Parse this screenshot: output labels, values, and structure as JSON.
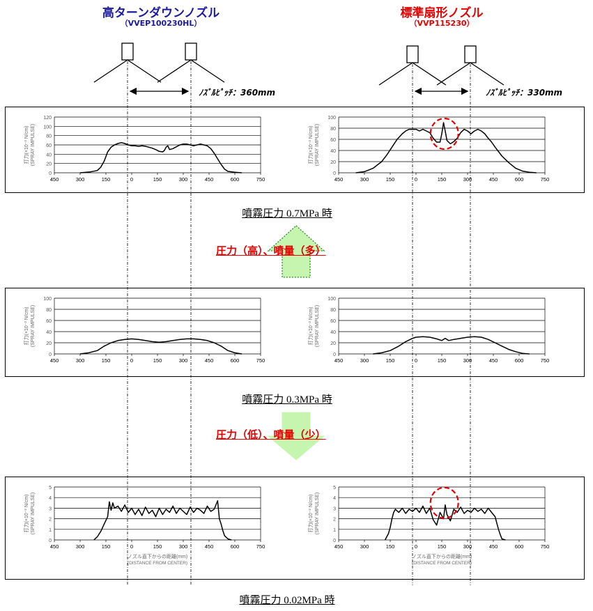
{
  "header": {
    "left_title": "高ターンダウンノズル",
    "left_model": "（VVEP100230HL）",
    "right_title": "標準扇形ノズル",
    "right_model": "（VVP115230）",
    "left_pitch": "ﾉｽﾞﾙﾋﾟｯﾁ：360mm",
    "right_pitch": "ﾉｽﾞﾙﾋﾟｯﾁ：330mm",
    "colors": {
      "left_title": "#1a1aa0",
      "right_title": "#e60000"
    }
  },
  "captions": {
    "p07": "噴霧圧力 0.7MPa 時",
    "p03": "噴霧圧力 0.3MPa 時",
    "p002": "噴霧圧力 0.02MPa 時"
  },
  "arrows": {
    "up_label": "圧力（高）、噴量（多）",
    "down_label": "圧力（低）、噴量（少）",
    "up_icon": "arrow-up-icon",
    "down_icon": "arrow-down-icon",
    "arrow_fill": "#c6f5b0"
  },
  "axis_labels": {
    "ylabel_line1": "打力(×10⁻² N/cm)",
    "ylabel_line2": "(SPRAY IMPULSE)",
    "xlabel_line1": "ノズル直下からの距離(mm)",
    "xlabel_line2": "(DISTANCE FROM CENTER)"
  },
  "chart_data": [
    {
      "id": "c07L",
      "type": "line",
      "pressure": "0.7MPa",
      "nozzle": "高ターンダウンノズル",
      "xlim": [
        -450,
        750
      ],
      "ylim": [
        0,
        120
      ],
      "yticks": [
        0,
        20,
        40,
        60,
        80,
        100,
        120
      ],
      "xticks": [
        -450,
        -300,
        -150,
        0,
        150,
        300,
        450,
        600,
        750
      ],
      "xticklabels": [
        "450",
        "300",
        "150",
        "0",
        "150",
        "300",
        "450",
        "600",
        "750"
      ],
      "x": [
        -300,
        -240,
        -200,
        -180,
        -160,
        -140,
        -120,
        -100,
        -80,
        -60,
        -40,
        -20,
        0,
        20,
        40,
        60,
        80,
        100,
        120,
        140,
        160,
        180,
        190,
        200,
        210,
        220,
        240,
        260,
        280,
        300,
        320,
        340,
        360,
        380,
        400,
        420,
        440,
        460,
        480,
        500,
        520,
        540,
        560,
        600,
        640
      ],
      "y": [
        0,
        2,
        5,
        12,
        25,
        45,
        55,
        60,
        63,
        65,
        63,
        60,
        58,
        58,
        57,
        58,
        57,
        55,
        53,
        50,
        46,
        45,
        48,
        55,
        58,
        50,
        52,
        56,
        60,
        62,
        62,
        60,
        58,
        60,
        62,
        60,
        58,
        52,
        42,
        30,
        18,
        8,
        3,
        1,
        0
      ]
    },
    {
      "id": "c07R",
      "type": "line",
      "pressure": "0.7MPa",
      "nozzle": "標準扇形ノズル",
      "xlim": [
        -450,
        750
      ],
      "ylim": [
        0,
        100
      ],
      "yticks": [
        0,
        20,
        40,
        60,
        80,
        100
      ],
      "xticks": [
        -450,
        -300,
        -150,
        0,
        150,
        300,
        450,
        600,
        750
      ],
      "xticklabels": [
        "450",
        "300",
        "150",
        "0",
        "150",
        "300",
        "450",
        "600",
        "750"
      ],
      "x": [
        -350,
        -300,
        -250,
        -200,
        -170,
        -140,
        -110,
        -80,
        -60,
        -40,
        -20,
        0,
        20,
        40,
        60,
        80,
        100,
        120,
        140,
        150,
        160,
        170,
        180,
        200,
        220,
        240,
        260,
        280,
        300,
        320,
        340,
        360,
        380,
        400,
        420,
        440,
        460,
        500,
        540,
        580,
        620,
        660,
        700
      ],
      "y": [
        0,
        2,
        8,
        20,
        32,
        46,
        60,
        70,
        75,
        78,
        78,
        78,
        75,
        78,
        75,
        72,
        62,
        55,
        55,
        70,
        90,
        75,
        58,
        52,
        56,
        62,
        72,
        78,
        75,
        70,
        75,
        78,
        75,
        70,
        62,
        55,
        46,
        30,
        18,
        8,
        3,
        1,
        0
      ],
      "annotation": "red-dashed-circle"
    },
    {
      "id": "c03L",
      "type": "line",
      "pressure": "0.3MPa",
      "nozzle": "高ターンダウンノズル",
      "xlim": [
        -450,
        750
      ],
      "ylim": [
        0,
        100
      ],
      "yticks": [
        0,
        20,
        40,
        60,
        80,
        100
      ],
      "xticks": [
        -450,
        -300,
        -150,
        0,
        150,
        300,
        450,
        600,
        750
      ],
      "xticklabels": [
        "450",
        "300",
        "150",
        "0",
        "150",
        "300",
        "450",
        "600",
        "750"
      ],
      "x": [
        -300,
        -250,
        -200,
        -160,
        -120,
        -80,
        -40,
        0,
        40,
        80,
        120,
        160,
        200,
        240,
        280,
        320,
        360,
        400,
        440,
        480,
        520,
        560,
        600,
        640
      ],
      "y": [
        0,
        2,
        6,
        14,
        20,
        24,
        26,
        27,
        26,
        24,
        22,
        21,
        22,
        24,
        26,
        27,
        27,
        26,
        24,
        20,
        14,
        6,
        2,
        0
      ]
    },
    {
      "id": "c03R",
      "type": "line",
      "pressure": "0.3MPa",
      "nozzle": "標準扇形ノズル",
      "xlim": [
        -450,
        750
      ],
      "ylim": [
        0,
        100
      ],
      "yticks": [
        0,
        20,
        40,
        60,
        80,
        100
      ],
      "xticks": [
        -450,
        -300,
        -150,
        0,
        150,
        300,
        450,
        600,
        750
      ],
      "xticklabels": [
        "450",
        "300",
        "150",
        "0",
        "150",
        "300",
        "450",
        "600",
        "750"
      ],
      "x": [
        -250,
        -200,
        -150,
        -100,
        -60,
        -20,
        0,
        40,
        80,
        120,
        150,
        170,
        190,
        220,
        260,
        300,
        340,
        380,
        420,
        460,
        500,
        540,
        580,
        620,
        660
      ],
      "y": [
        0,
        2,
        6,
        14,
        22,
        28,
        30,
        31,
        30,
        27,
        24,
        28,
        24,
        26,
        28,
        30,
        31,
        30,
        26,
        20,
        14,
        8,
        4,
        1,
        0
      ]
    },
    {
      "id": "c002L",
      "type": "line",
      "pressure": "0.02MPa",
      "nozzle": "高ターンダウンノズル",
      "xlim": [
        -450,
        750
      ],
      "ylim": [
        0,
        5
      ],
      "yticks": [
        0,
        1,
        2,
        3,
        4,
        5
      ],
      "xticks": [
        -450,
        -300,
        -150,
        0,
        150,
        300,
        450,
        600,
        750
      ],
      "xticklabels": [
        "450",
        "300",
        "150",
        "0",
        "150",
        "300",
        "450",
        "600",
        "750"
      ],
      "xlabel": "ノズル直下からの距離(mm)",
      "x": [
        -220,
        -200,
        -180,
        -160,
        -140,
        -130,
        -120,
        -110,
        -100,
        -80,
        -60,
        -40,
        -20,
        0,
        20,
        40,
        60,
        80,
        100,
        120,
        140,
        160,
        180,
        200,
        220,
        240,
        260,
        280,
        300,
        320,
        340,
        360,
        380,
        400,
        420,
        440,
        460,
        480,
        500,
        510,
        520,
        530,
        540,
        560,
        580
      ],
      "y": [
        0,
        0.3,
        0.8,
        1.5,
        2.2,
        3.6,
        2.8,
        3.5,
        3.0,
        3.2,
        2.7,
        3.3,
        2.6,
        3.0,
        2.4,
        2.9,
        2.3,
        3.1,
        2.5,
        2.8,
        2.2,
        3.0,
        2.4,
        2.9,
        2.6,
        3.2,
        2.5,
        3.0,
        2.7,
        2.4,
        3.1,
        2.6,
        3.0,
        2.8,
        2.5,
        3.2,
        2.7,
        2.9,
        3.7,
        2.0,
        1.5,
        0.9,
        0.4,
        0.1,
        0
      ]
    },
    {
      "id": "c002R",
      "type": "line",
      "pressure": "0.02MPa",
      "nozzle": "標準扇形ノズル",
      "xlim": [
        -450,
        750
      ],
      "ylim": [
        0,
        5
      ],
      "yticks": [
        0,
        1,
        2,
        3,
        4,
        5
      ],
      "xticks": [
        -450,
        -300,
        -150,
        0,
        150,
        300,
        450,
        600,
        750
      ],
      "xticklabels": [
        "450",
        "300",
        "150",
        "0",
        "150",
        "300",
        "450",
        "600",
        "750"
      ],
      "xlabel": "ノズル直下からの距離(mm)",
      "x": [
        -180,
        -160,
        -150,
        -140,
        -130,
        -120,
        -100,
        -80,
        -60,
        -40,
        -20,
        0,
        20,
        40,
        60,
        80,
        100,
        120,
        140,
        160,
        170,
        180,
        200,
        220,
        240,
        260,
        280,
        300,
        320,
        340,
        360,
        380,
        400,
        420,
        440,
        460,
        470,
        480,
        490,
        500,
        520
      ],
      "y": [
        0,
        0.6,
        1.2,
        2.0,
        2.6,
        2.9,
        2.6,
        3.0,
        2.5,
        2.9,
        2.7,
        3.0,
        2.6,
        3.2,
        2.5,
        3.0,
        1.9,
        1.4,
        2.6,
        2.0,
        3.3,
        2.4,
        1.8,
        2.9,
        2.6,
        3.1,
        2.5,
        2.8,
        2.6,
        3.0,
        2.7,
        2.9,
        2.5,
        3.0,
        2.6,
        2.2,
        1.6,
        1.0,
        0.5,
        0.1,
        0
      ],
      "annotation": "red-dashed-circle"
    }
  ]
}
